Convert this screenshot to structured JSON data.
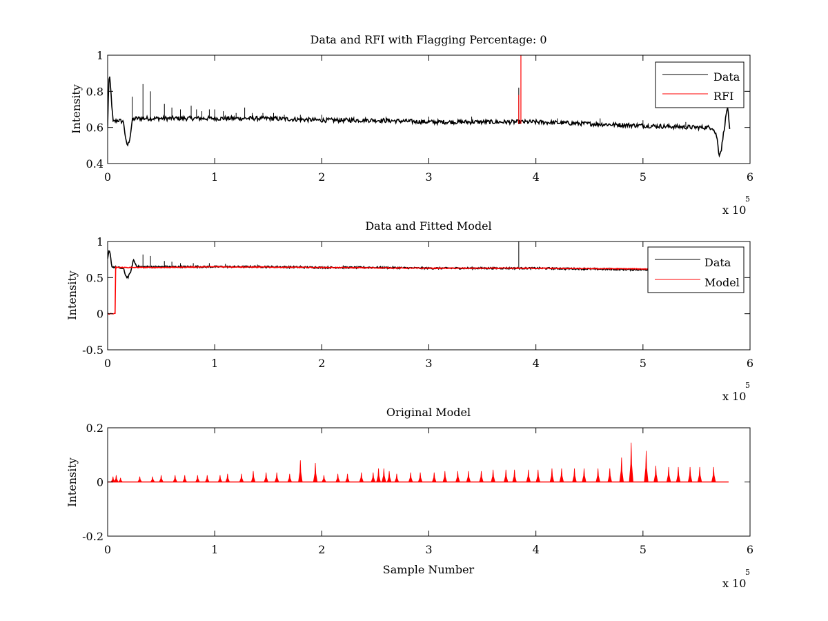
{
  "colors": {
    "data": "#000000",
    "model": "#ff0000",
    "axes": "#000000",
    "background": "#ffffff"
  },
  "chart_data": [
    {
      "type": "line",
      "title": "Data and RFI with Flagging Percentage: 0",
      "xlabel": "",
      "ylabel": "Intensity",
      "xlim": [
        0,
        6
      ],
      "ylim": [
        0.4,
        1
      ],
      "xticks": [
        "0",
        "1",
        "2",
        "3",
        "4",
        "5",
        "6"
      ],
      "yticks": [
        "0.4",
        "0.6",
        "0.8",
        "1"
      ],
      "x_exponent_label": "x 10",
      "x_exponent_power": "5",
      "legend": {
        "position": "top-right",
        "entries": [
          "Data",
          "RFI"
        ]
      },
      "series": [
        {
          "name": "Data",
          "color": "#000000",
          "x": [
            0.0,
            0.01,
            0.02,
            0.03,
            0.05,
            0.1,
            0.15,
            0.17,
            0.19,
            0.21,
            0.23,
            0.26,
            0.3,
            0.5,
            1.0,
            1.5,
            2.0,
            2.5,
            3.0,
            3.5,
            4.0,
            4.5,
            5.0,
            5.5,
            5.65,
            5.69,
            5.71,
            5.73,
            5.76,
            5.79,
            5.81
          ],
          "y": [
            0.6,
            0.86,
            0.87,
            0.8,
            0.63,
            0.64,
            0.63,
            0.52,
            0.5,
            0.55,
            0.64,
            0.65,
            0.65,
            0.65,
            0.65,
            0.65,
            0.64,
            0.64,
            0.63,
            0.63,
            0.63,
            0.62,
            0.61,
            0.6,
            0.6,
            0.55,
            0.45,
            0.47,
            0.6,
            0.72,
            0.58
          ],
          "spikes": [
            {
              "x": 0.23,
              "y": 0.77
            },
            {
              "x": 0.33,
              "y": 0.84
            },
            {
              "x": 0.4,
              "y": 0.8
            },
            {
              "x": 0.53,
              "y": 0.73
            },
            {
              "x": 0.6,
              "y": 0.71
            },
            {
              "x": 0.68,
              "y": 0.7
            },
            {
              "x": 0.78,
              "y": 0.72
            },
            {
              "x": 0.83,
              "y": 0.7
            },
            {
              "x": 0.88,
              "y": 0.69
            },
            {
              "x": 0.95,
              "y": 0.7
            },
            {
              "x": 1.0,
              "y": 0.7
            },
            {
              "x": 1.08,
              "y": 0.69
            },
            {
              "x": 1.2,
              "y": 0.68
            },
            {
              "x": 1.28,
              "y": 0.71
            },
            {
              "x": 1.35,
              "y": 0.68
            },
            {
              "x": 1.45,
              "y": 0.68
            },
            {
              "x": 1.55,
              "y": 0.68
            },
            {
              "x": 1.65,
              "y": 0.67
            },
            {
              "x": 1.8,
              "y": 0.67
            },
            {
              "x": 2.0,
              "y": 0.67
            },
            {
              "x": 2.3,
              "y": 0.66
            },
            {
              "x": 2.6,
              "y": 0.66
            },
            {
              "x": 3.0,
              "y": 0.66
            },
            {
              "x": 3.4,
              "y": 0.66
            },
            {
              "x": 3.84,
              "y": 0.82
            },
            {
              "x": 4.2,
              "y": 0.65
            },
            {
              "x": 4.6,
              "y": 0.65
            },
            {
              "x": 5.0,
              "y": 0.64
            },
            {
              "x": 5.4,
              "y": 0.63
            }
          ]
        },
        {
          "name": "RFI",
          "color": "#ff0000",
          "spikes": [
            {
              "x": 3.86,
              "y": 1.0
            },
            {
              "x": 3.84,
              "y": 0.78
            }
          ],
          "baseline": 0.62
        }
      ]
    },
    {
      "type": "line",
      "title": "Data and Fitted Model",
      "xlabel": "",
      "ylabel": "Intensity",
      "xlim": [
        0,
        6
      ],
      "ylim": [
        -0.5,
        1
      ],
      "xticks": [
        "0",
        "1",
        "2",
        "3",
        "4",
        "5",
        "6"
      ],
      "yticks": [
        "-0.5",
        "0",
        "0.5",
        "1"
      ],
      "x_exponent_label": "x 10",
      "x_exponent_power": "5",
      "legend": {
        "position": "top-right",
        "entries": [
          "Data",
          "Model"
        ]
      },
      "series": [
        {
          "name": "Data",
          "color": "#000000",
          "x": [
            0.0,
            0.01,
            0.02,
            0.04,
            0.1,
            0.15,
            0.17,
            0.19,
            0.22,
            0.24,
            0.27,
            0.3,
            0.5,
            1.0,
            1.5,
            2.0,
            2.5,
            3.0,
            3.5,
            4.0,
            4.5,
            5.0,
            5.2
          ],
          "y": [
            0.75,
            0.86,
            0.86,
            0.65,
            0.64,
            0.62,
            0.52,
            0.5,
            0.6,
            0.75,
            0.66,
            0.65,
            0.65,
            0.65,
            0.65,
            0.64,
            0.64,
            0.63,
            0.63,
            0.63,
            0.62,
            0.61,
            0.61
          ],
          "spikes": [
            {
              "x": 0.33,
              "y": 0.82
            },
            {
              "x": 0.4,
              "y": 0.8
            },
            {
              "x": 0.53,
              "y": 0.73
            },
            {
              "x": 0.6,
              "y": 0.72
            },
            {
              "x": 0.68,
              "y": 0.7
            },
            {
              "x": 0.8,
              "y": 0.7
            },
            {
              "x": 0.95,
              "y": 0.7
            },
            {
              "x": 1.1,
              "y": 0.69
            },
            {
              "x": 1.4,
              "y": 0.68
            },
            {
              "x": 1.8,
              "y": 0.67
            },
            {
              "x": 2.2,
              "y": 0.67
            },
            {
              "x": 3.84,
              "y": 1.0
            }
          ]
        },
        {
          "name": "Model",
          "color": "#ff0000",
          "x": [
            0.0,
            0.07,
            0.075,
            0.08,
            0.5,
            1.0,
            2.0,
            3.0,
            4.0,
            5.0,
            5.2
          ],
          "y": [
            0.0,
            0.0,
            0.65,
            0.64,
            0.64,
            0.65,
            0.64,
            0.63,
            0.63,
            0.62,
            0.62
          ]
        }
      ]
    },
    {
      "type": "line",
      "title": "Original Model",
      "xlabel": "Sample Number",
      "ylabel": "Intensity",
      "xlim": [
        0,
        6
      ],
      "ylim": [
        -0.2,
        0.2
      ],
      "xticks": [
        "0",
        "1",
        "2",
        "3",
        "4",
        "5",
        "6"
      ],
      "yticks": [
        "-0.2",
        "0",
        "0.2"
      ],
      "x_exponent_label": "x 10",
      "x_exponent_power": "5",
      "series": [
        {
          "name": "",
          "color": "#ff0000",
          "baseline": 0.0,
          "x_end": 5.8,
          "peaks": [
            {
              "x": 0.05,
              "y": 0.02
            },
            {
              "x": 0.08,
              "y": 0.025
            },
            {
              "x": 0.12,
              "y": 0.015
            },
            {
              "x": 0.3,
              "y": 0.02
            },
            {
              "x": 0.42,
              "y": 0.02
            },
            {
              "x": 0.5,
              "y": 0.025
            },
            {
              "x": 0.63,
              "y": 0.025
            },
            {
              "x": 0.72,
              "y": 0.025
            },
            {
              "x": 0.84,
              "y": 0.025
            },
            {
              "x": 0.93,
              "y": 0.025
            },
            {
              "x": 1.05,
              "y": 0.025
            },
            {
              "x": 1.12,
              "y": 0.03
            },
            {
              "x": 1.25,
              "y": 0.03
            },
            {
              "x": 1.36,
              "y": 0.04
            },
            {
              "x": 1.48,
              "y": 0.035
            },
            {
              "x": 1.58,
              "y": 0.035
            },
            {
              "x": 1.7,
              "y": 0.03
            },
            {
              "x": 1.8,
              "y": 0.08
            },
            {
              "x": 1.94,
              "y": 0.07
            },
            {
              "x": 2.02,
              "y": 0.025
            },
            {
              "x": 2.15,
              "y": 0.03
            },
            {
              "x": 2.24,
              "y": 0.03
            },
            {
              "x": 2.37,
              "y": 0.035
            },
            {
              "x": 2.48,
              "y": 0.035
            },
            {
              "x": 2.53,
              "y": 0.05
            },
            {
              "x": 2.58,
              "y": 0.05
            },
            {
              "x": 2.63,
              "y": 0.04
            },
            {
              "x": 2.7,
              "y": 0.03
            },
            {
              "x": 2.83,
              "y": 0.035
            },
            {
              "x": 2.92,
              "y": 0.035
            },
            {
              "x": 3.05,
              "y": 0.035
            },
            {
              "x": 3.15,
              "y": 0.04
            },
            {
              "x": 3.27,
              "y": 0.04
            },
            {
              "x": 3.37,
              "y": 0.04
            },
            {
              "x": 3.49,
              "y": 0.04
            },
            {
              "x": 3.6,
              "y": 0.045
            },
            {
              "x": 3.72,
              "y": 0.045
            },
            {
              "x": 3.8,
              "y": 0.045
            },
            {
              "x": 3.93,
              "y": 0.045
            },
            {
              "x": 4.02,
              "y": 0.045
            },
            {
              "x": 4.15,
              "y": 0.05
            },
            {
              "x": 4.24,
              "y": 0.05
            },
            {
              "x": 4.36,
              "y": 0.05
            },
            {
              "x": 4.45,
              "y": 0.05
            },
            {
              "x": 4.58,
              "y": 0.05
            },
            {
              "x": 4.69,
              "y": 0.05
            },
            {
              "x": 4.8,
              "y": 0.09
            },
            {
              "x": 4.89,
              "y": 0.145
            },
            {
              "x": 5.03,
              "y": 0.115
            },
            {
              "x": 5.12,
              "y": 0.06
            },
            {
              "x": 5.24,
              "y": 0.055
            },
            {
              "x": 5.33,
              "y": 0.055
            },
            {
              "x": 5.44,
              "y": 0.055
            },
            {
              "x": 5.53,
              "y": 0.055
            },
            {
              "x": 5.66,
              "y": 0.055
            }
          ]
        }
      ]
    }
  ]
}
